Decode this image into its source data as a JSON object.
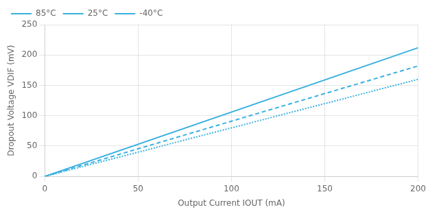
{
  "chart_data": {
    "type": "line",
    "x_label": "Output Current IOUT (mA)",
    "y_label": "Dropout Voltage VDIF (mV)",
    "x": [
      0,
      200
    ],
    "series": [
      {
        "name": "85°C",
        "color": "#3ab0e0",
        "line_style": "solid",
        "values": [
          0,
          212
        ]
      },
      {
        "name": "25°C",
        "color": "#3ab0e0",
        "line_style": "dashed",
        "values": [
          0,
          182
        ]
      },
      {
        "name": "-40°C",
        "color": "#3ab0e0",
        "line_style": "dotted",
        "values": [
          0,
          160
        ]
      }
    ],
    "xlim": [
      0,
      200
    ],
    "xticks": [
      0,
      50,
      100,
      150,
      200
    ],
    "ylim": [
      0,
      250
    ],
    "yticks": [
      0,
      50,
      100,
      150,
      200,
      250
    ],
    "grid": true,
    "legend": "upper left"
  }
}
